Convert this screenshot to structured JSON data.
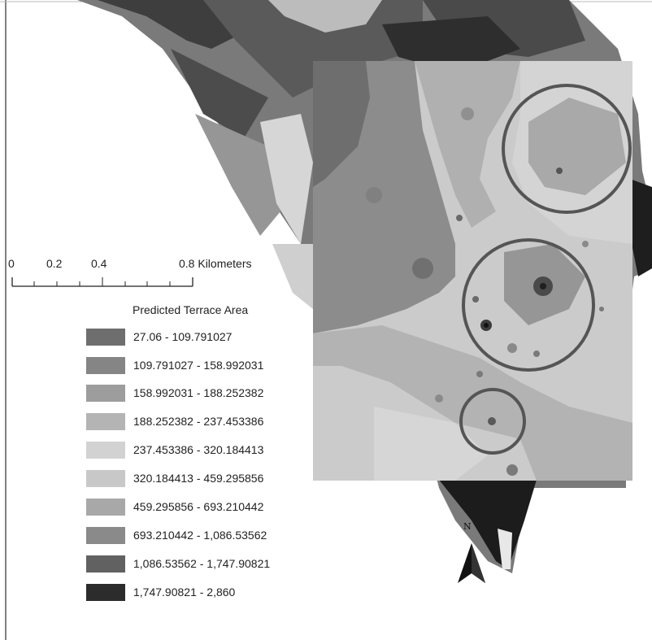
{
  "scale_bar": {
    "ticks": [
      "0",
      "0.2",
      "0.4",
      "0.8 Kilometers"
    ]
  },
  "legend": {
    "title": "Predicted Terrace Area",
    "items": [
      {
        "label": "27.06 - 109.791027",
        "color": "#6e6e6e"
      },
      {
        "label": "109.791027 - 158.992031",
        "color": "#858585"
      },
      {
        "label": "158.992031 - 188.252382",
        "color": "#9d9d9d"
      },
      {
        "label": "188.252382 - 237.453386",
        "color": "#b4b4b4"
      },
      {
        "label": "237.453386 - 320.184413",
        "color": "#d2d2d2"
      },
      {
        "label": "320.184413 - 459.295856",
        "color": "#c8c8c8"
      },
      {
        "label": "459.295856 - 693.210442",
        "color": "#a8a8a8"
      },
      {
        "label": "693.210442 - 1,086.53562",
        "color": "#8a8a8a"
      },
      {
        "label": "1,086.53562 - 1,747.90821",
        "color": "#616161"
      },
      {
        "label": "1,747.90821 - 2,860",
        "color": "#2c2c2c"
      }
    ]
  },
  "north_arrow": {
    "letter": "N"
  },
  "colors": {
    "highlight_circle": "#555555",
    "background": "#ffffff"
  }
}
